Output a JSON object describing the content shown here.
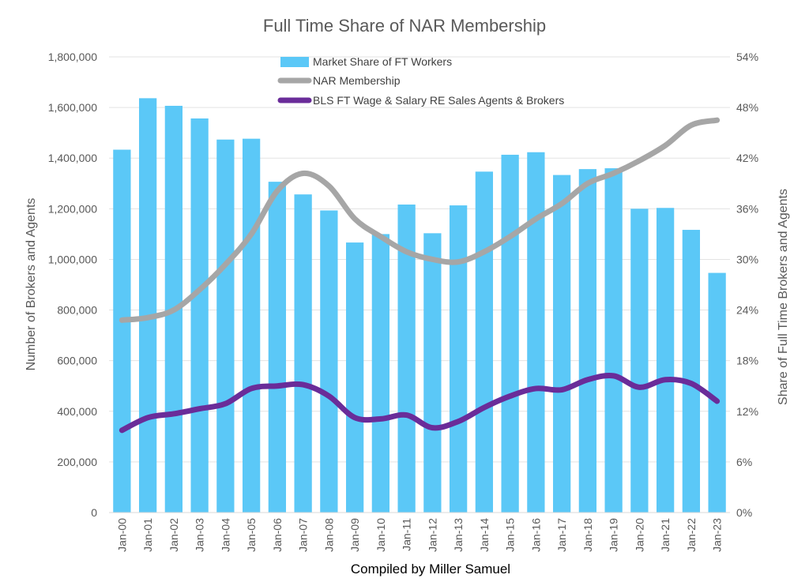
{
  "chart_data": {
    "type": "bar",
    "title": "Full Time Share of NAR Membership",
    "footer": "Compiled by Miller Samuel",
    "ylabel_left": "Number of Brokers and Agents",
    "ylabel_right": "Share of Full Time Brokers and Agents",
    "categories": [
      "Jan-00",
      "Jan-01",
      "Jan-02",
      "Jan-03",
      "Jan-04",
      "Jan-05",
      "Jan-06",
      "Jan-07",
      "Jan-08",
      "Jan-09",
      "Jan-10",
      "Jan-11",
      "Jan-12",
      "Jan-13",
      "Jan-14",
      "Jan-15",
      "Jan-16",
      "Jan-17",
      "Jan-18",
      "Jan-19",
      "Jan-20",
      "Jan-21",
      "Jan-22",
      "Jan-23"
    ],
    "left_axis": {
      "min": 0,
      "max": 1800000,
      "ticks": [
        0,
        200000,
        400000,
        600000,
        800000,
        1000000,
        1200000,
        1400000,
        1600000,
        1800000
      ],
      "tick_labels": [
        "0",
        "200,000",
        "400,000",
        "600,000",
        "800,000",
        "1,000,000",
        "1,200,000",
        "1,400,000",
        "1,600,000",
        "1,800,000"
      ]
    },
    "right_axis": {
      "min": 0,
      "max": 0.54,
      "ticks": [
        0,
        0.06,
        0.12,
        0.18,
        0.24,
        0.3,
        0.36,
        0.42,
        0.48,
        0.54
      ],
      "tick_labels": [
        "0%",
        "6%",
        "12%",
        "18%",
        "24%",
        "30%",
        "36%",
        "42%",
        "48%",
        "54%"
      ]
    },
    "series": [
      {
        "name": "Market Share of FT Workers",
        "type": "bar",
        "axis": "right",
        "color": "#5BC8F7",
        "values": [
          0.43,
          0.491,
          0.482,
          0.467,
          0.442,
          0.443,
          0.392,
          0.377,
          0.358,
          0.32,
          0.33,
          0.365,
          0.331,
          0.364,
          0.404,
          0.424,
          0.427,
          0.4,
          0.407,
          0.408,
          0.36,
          0.361,
          0.335,
          0.284
        ]
      },
      {
        "name": "NAR Membership",
        "type": "line",
        "axis": "left",
        "color": "#A6A6A6",
        "values": [
          760000,
          770000,
          800000,
          880000,
          980000,
          1100000,
          1270000,
          1340000,
          1290000,
          1160000,
          1090000,
          1030000,
          1000000,
          990000,
          1030000,
          1090000,
          1160000,
          1220000,
          1300000,
          1340000,
          1390000,
          1450000,
          1530000,
          1550000
        ]
      },
      {
        "name": "BLS FT Wage & Salary RE Sales Agents & Brokers",
        "type": "line",
        "axis": "left",
        "color": "#6A2C99",
        "values": [
          325000,
          375000,
          390000,
          410000,
          430000,
          490000,
          500000,
          505000,
          460000,
          375000,
          370000,
          385000,
          335000,
          360000,
          415000,
          460000,
          490000,
          485000,
          525000,
          540000,
          495000,
          525000,
          510000,
          440000
        ]
      }
    ],
    "legend_position": "top-center"
  }
}
